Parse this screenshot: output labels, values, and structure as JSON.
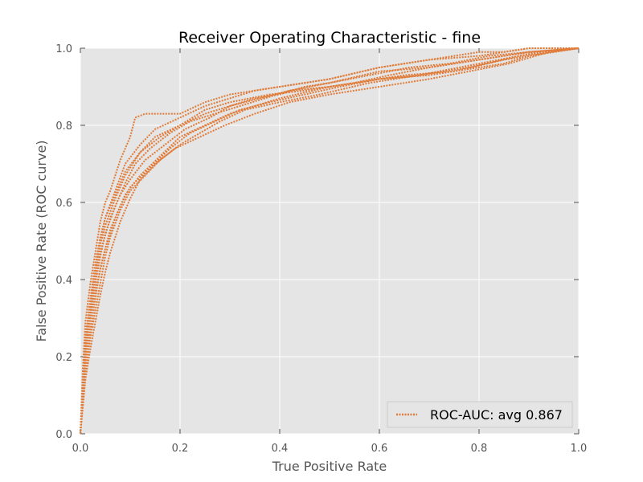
{
  "chart_data": {
    "type": "line",
    "title": "Receiver Operating Characteristic - fine",
    "xlabel": "True Positive Rate",
    "ylabel": "False Positive Rate (ROC curve)",
    "xlim": [
      0,
      1
    ],
    "ylim": [
      0,
      1
    ],
    "x_ticks": [
      0.0,
      0.2,
      0.4,
      0.6,
      0.8,
      1.0
    ],
    "x_tick_labels": [
      "0.0",
      "0.2",
      "0.4",
      "0.6",
      "0.8",
      "1.0"
    ],
    "y_ticks": [
      0.0,
      0.2,
      0.4,
      0.6,
      0.8,
      1.0
    ],
    "y_tick_labels": [
      "0.0",
      "0.2",
      "0.4",
      "0.6",
      "0.8",
      "1.0"
    ],
    "grid": true,
    "background": "#E5E5E5",
    "series_color": "#E07B39",
    "legend": {
      "location": "lower-right",
      "entries": [
        "ROC-AUC: avg 0.867"
      ]
    },
    "series": [
      {
        "x": [
          0.0,
          0.005,
          0.01,
          0.02,
          0.03,
          0.04,
          0.05,
          0.06,
          0.08,
          0.1,
          0.11,
          0.13,
          0.16,
          0.2,
          0.25,
          0.3,
          0.35,
          0.4,
          0.5,
          0.6,
          0.7,
          0.8,
          0.85,
          0.9,
          1.0
        ],
        "y": [
          0.0,
          0.17,
          0.29,
          0.39,
          0.47,
          0.55,
          0.6,
          0.63,
          0.71,
          0.77,
          0.82,
          0.83,
          0.83,
          0.83,
          0.86,
          0.88,
          0.89,
          0.9,
          0.92,
          0.95,
          0.97,
          0.99,
          0.99,
          1.0,
          1.0
        ]
      },
      {
        "x": [
          0.0,
          0.005,
          0.01,
          0.02,
          0.03,
          0.04,
          0.05,
          0.07,
          0.09,
          0.12,
          0.15,
          0.2,
          0.25,
          0.3,
          0.35,
          0.4,
          0.5,
          0.6,
          0.7,
          0.8,
          0.9,
          1.0
        ],
        "y": [
          0.0,
          0.14,
          0.25,
          0.35,
          0.44,
          0.51,
          0.56,
          0.63,
          0.7,
          0.75,
          0.79,
          0.82,
          0.85,
          0.87,
          0.89,
          0.9,
          0.92,
          0.95,
          0.97,
          0.98,
          1.0,
          1.0
        ]
      },
      {
        "x": [
          0.0,
          0.005,
          0.01,
          0.02,
          0.03,
          0.04,
          0.06,
          0.08,
          0.1,
          0.13,
          0.17,
          0.21,
          0.26,
          0.3,
          0.35,
          0.4,
          0.45,
          0.5,
          0.6,
          0.7,
          0.8,
          0.9,
          1.0
        ],
        "y": [
          0.0,
          0.12,
          0.22,
          0.32,
          0.4,
          0.47,
          0.56,
          0.62,
          0.66,
          0.71,
          0.75,
          0.79,
          0.82,
          0.85,
          0.87,
          0.88,
          0.9,
          0.91,
          0.94,
          0.95,
          0.97,
          0.99,
          1.0
        ]
      },
      {
        "x": [
          0.0,
          0.005,
          0.01,
          0.02,
          0.03,
          0.05,
          0.07,
          0.09,
          0.12,
          0.16,
          0.2,
          0.25,
          0.3,
          0.35,
          0.4,
          0.5,
          0.6,
          0.7,
          0.8,
          0.85,
          0.9,
          1.0
        ],
        "y": [
          0.0,
          0.1,
          0.2,
          0.3,
          0.37,
          0.48,
          0.56,
          0.62,
          0.67,
          0.72,
          0.77,
          0.8,
          0.83,
          0.85,
          0.87,
          0.9,
          0.92,
          0.93,
          0.95,
          0.96,
          0.98,
          1.0
        ]
      },
      {
        "x": [
          0.0,
          0.005,
          0.01,
          0.02,
          0.03,
          0.04,
          0.05,
          0.07,
          0.09,
          0.12,
          0.15,
          0.2,
          0.25,
          0.3,
          0.38,
          0.45,
          0.55,
          0.65,
          0.75,
          0.85,
          0.95,
          1.0
        ],
        "y": [
          0.0,
          0.13,
          0.24,
          0.33,
          0.42,
          0.49,
          0.54,
          0.61,
          0.67,
          0.73,
          0.77,
          0.8,
          0.84,
          0.86,
          0.88,
          0.89,
          0.91,
          0.93,
          0.94,
          0.97,
          0.99,
          1.0
        ]
      },
      {
        "x": [
          0.0,
          0.005,
          0.01,
          0.02,
          0.03,
          0.04,
          0.06,
          0.08,
          0.1,
          0.14,
          0.18,
          0.22,
          0.27,
          0.32,
          0.38,
          0.45,
          0.52,
          0.6,
          0.68,
          0.76,
          0.84,
          0.92,
          1.0
        ],
        "y": [
          0.0,
          0.09,
          0.18,
          0.27,
          0.35,
          0.43,
          0.53,
          0.59,
          0.64,
          0.69,
          0.74,
          0.78,
          0.81,
          0.84,
          0.86,
          0.88,
          0.9,
          0.92,
          0.93,
          0.95,
          0.97,
          0.99,
          1.0
        ]
      },
      {
        "x": [
          0.0,
          0.005,
          0.01,
          0.02,
          0.03,
          0.04,
          0.05,
          0.06,
          0.08,
          0.1,
          0.13,
          0.16,
          0.2,
          0.24,
          0.28,
          0.33,
          0.4,
          0.48,
          0.58,
          0.68,
          0.78,
          0.88,
          1.0
        ],
        "y": [
          0.0,
          0.08,
          0.16,
          0.25,
          0.32,
          0.39,
          0.46,
          0.51,
          0.58,
          0.63,
          0.67,
          0.71,
          0.75,
          0.78,
          0.81,
          0.84,
          0.86,
          0.88,
          0.91,
          0.93,
          0.95,
          0.98,
          1.0
        ]
      },
      {
        "x": [
          0.0,
          0.005,
          0.01,
          0.02,
          0.03,
          0.04,
          0.05,
          0.07,
          0.09,
          0.11,
          0.14,
          0.18,
          0.22,
          0.27,
          0.32,
          0.37,
          0.42,
          0.5,
          0.55,
          0.62,
          0.7,
          0.8,
          0.9,
          1.0
        ],
        "y": [
          0.0,
          0.11,
          0.21,
          0.31,
          0.39,
          0.46,
          0.52,
          0.59,
          0.65,
          0.7,
          0.74,
          0.78,
          0.81,
          0.83,
          0.85,
          0.87,
          0.89,
          0.9,
          0.91,
          0.93,
          0.95,
          0.97,
          0.99,
          1.0
        ]
      },
      {
        "x": [
          0.0,
          0.005,
          0.01,
          0.02,
          0.03,
          0.04,
          0.05,
          0.06,
          0.08,
          0.1,
          0.12,
          0.15,
          0.19,
          0.24,
          0.29,
          0.35,
          0.42,
          0.5,
          0.6,
          0.7,
          0.78,
          0.86,
          0.94,
          1.0
        ],
        "y": [
          0.0,
          0.07,
          0.14,
          0.22,
          0.29,
          0.36,
          0.42,
          0.47,
          0.55,
          0.61,
          0.66,
          0.7,
          0.74,
          0.77,
          0.8,
          0.83,
          0.86,
          0.88,
          0.9,
          0.92,
          0.94,
          0.96,
          0.99,
          1.0
        ]
      },
      {
        "x": [
          0.0,
          0.005,
          0.01,
          0.02,
          0.03,
          0.04,
          0.05,
          0.07,
          0.09,
          0.12,
          0.16,
          0.2,
          0.25,
          0.3,
          0.36,
          0.42,
          0.5,
          0.58,
          0.66,
          0.74,
          0.82,
          0.9,
          1.0
        ],
        "y": [
          0.0,
          0.12,
          0.23,
          0.34,
          0.42,
          0.5,
          0.56,
          0.62,
          0.68,
          0.73,
          0.77,
          0.8,
          0.83,
          0.85,
          0.87,
          0.89,
          0.91,
          0.93,
          0.95,
          0.96,
          0.98,
          0.99,
          1.0
        ]
      }
    ]
  }
}
